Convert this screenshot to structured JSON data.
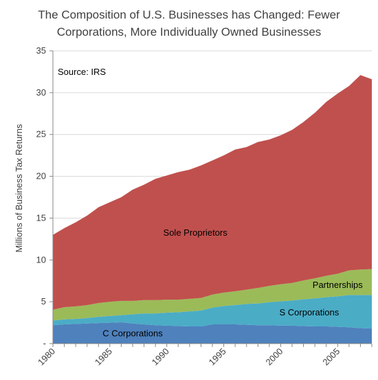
{
  "chart_data": {
    "type": "area",
    "stacked": true,
    "title_lines": [
      "The Composition of U.S. Businesses has Changed: Fewer",
      "Corporations, More Individually Owned Businesses"
    ],
    "ylabel": "Millions of Business Tax Returns",
    "xlabel": "",
    "annotation": "Source: IRS",
    "x": [
      1980,
      1981,
      1982,
      1983,
      1984,
      1985,
      1986,
      1987,
      1988,
      1989,
      1990,
      1991,
      1992,
      1993,
      1994,
      1995,
      1996,
      1997,
      1998,
      1999,
      2000,
      2001,
      2002,
      2003,
      2004,
      2005,
      2006,
      2007,
      2008
    ],
    "x_ticks": [
      1980,
      1985,
      1990,
      1995,
      2000,
      2005
    ],
    "y_ticks": [
      0,
      5,
      10,
      15,
      20,
      25,
      30,
      35
    ],
    "y_tick_labels": [
      "-",
      "5",
      "10",
      "15",
      "20",
      "25",
      "30",
      "35"
    ],
    "ylim": [
      0,
      35
    ],
    "xlim": [
      1980,
      2008
    ],
    "grid": "horizontal",
    "series": [
      {
        "name": "C Corporations",
        "color": "#4f81bd",
        "values": [
          2.2,
          2.3,
          2.35,
          2.4,
          2.45,
          2.5,
          2.55,
          2.4,
          2.3,
          2.2,
          2.15,
          2.1,
          2.05,
          2.05,
          2.3,
          2.3,
          2.3,
          2.25,
          2.2,
          2.2,
          2.15,
          2.15,
          2.1,
          2.05,
          2.05,
          2.0,
          1.95,
          1.85,
          1.8
        ]
      },
      {
        "name": "S Corporations",
        "color": "#4bacc6",
        "values": [
          0.55,
          0.6,
          0.6,
          0.65,
          0.75,
          0.8,
          0.85,
          1.1,
          1.3,
          1.4,
          1.55,
          1.65,
          1.8,
          1.9,
          2.0,
          2.2,
          2.3,
          2.5,
          2.6,
          2.75,
          2.9,
          3.0,
          3.2,
          3.35,
          3.5,
          3.65,
          3.85,
          3.95,
          4.0
        ]
      },
      {
        "name": "Partnerships",
        "color": "#9bbb59",
        "values": [
          1.3,
          1.45,
          1.5,
          1.55,
          1.65,
          1.7,
          1.7,
          1.6,
          1.6,
          1.6,
          1.55,
          1.5,
          1.5,
          1.5,
          1.55,
          1.6,
          1.65,
          1.7,
          1.85,
          1.95,
          2.05,
          2.1,
          2.25,
          2.4,
          2.55,
          2.7,
          2.95,
          3.05,
          3.1
        ]
      },
      {
        "name": "Sole Proprietors",
        "color": "#c0504d",
        "values": [
          8.95,
          9.45,
          10.05,
          10.7,
          11.45,
          11.9,
          12.4,
          13.3,
          13.8,
          14.5,
          14.85,
          15.25,
          15.45,
          15.85,
          16.05,
          16.4,
          16.95,
          17.05,
          17.45,
          17.5,
          17.8,
          18.3,
          18.95,
          19.8,
          20.8,
          21.55,
          22.05,
          23.25,
          22.7
        ]
      }
    ],
    "series_label_positions": [
      {
        "name": "C Corporations",
        "at_x": 1987,
        "at_fraction_of_band": 0.5
      },
      {
        "name": "S Corporations",
        "at_x": 2002.5,
        "at_fraction_of_band": 0.5
      },
      {
        "name": "Partnerships",
        "at_x": 2005,
        "at_fraction_of_band": 0.5
      },
      {
        "name": "Sole Proprietors",
        "at_x": 1992.5,
        "at_fraction_of_band": 0.5
      }
    ]
  }
}
